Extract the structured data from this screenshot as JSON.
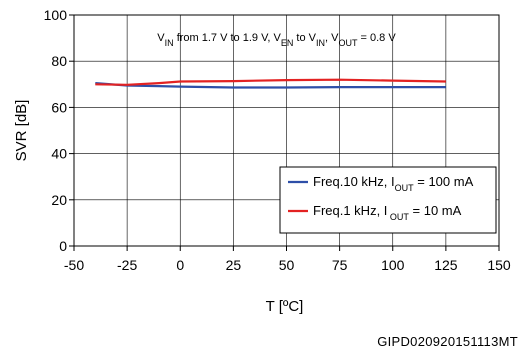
{
  "chart_data": {
    "type": "line",
    "xlabel": "T [ºC]",
    "ylabel": "SVR [dB]",
    "xlim": [
      -50,
      150
    ],
    "ylim": [
      0,
      100
    ],
    "xticks": [
      -50,
      -25,
      0,
      25,
      50,
      75,
      100,
      125,
      150
    ],
    "yticks": [
      0,
      20,
      40,
      60,
      80,
      100
    ],
    "grid": true,
    "legend_position": "bottom-right",
    "annotation": {
      "parts": [
        {
          "t": "V",
          "sub": false
        },
        {
          "t": "IN",
          "sub": true
        },
        {
          "t": " from 1.7 V to 1.9 V, V",
          "sub": false
        },
        {
          "t": "EN",
          "sub": true
        },
        {
          "t": "  to V",
          "sub": false
        },
        {
          "t": "IN",
          "sub": true
        },
        {
          "t": ", V",
          "sub": false
        },
        {
          "t": "OUT",
          "sub": true
        },
        {
          "t": " = 0.8 V",
          "sub": false
        }
      ]
    },
    "series": [
      {
        "name": "Freq.10 kHz, IOUT = 100 mA",
        "legend_parts": [
          {
            "t": "Freq.10 kHz, I",
            "sub": false
          },
          {
            "t": "OUT",
            "sub": true
          },
          {
            "t": " = 100 mA",
            "sub": false
          }
        ],
        "color": "#2e4fa8",
        "x": [
          -40,
          -25,
          -10,
          0,
          25,
          50,
          75,
          100,
          125
        ],
        "y": [
          70.5,
          69.5,
          69.2,
          69.0,
          68.6,
          68.6,
          68.8,
          68.8,
          68.8
        ]
      },
      {
        "name": "Freq.1 kHz, IOUT = 10 mA",
        "legend_parts": [
          {
            "t": "Freq.1 kHz, I",
            "sub": false
          },
          {
            "t": " OUT",
            "sub": true
          },
          {
            "t": " = 10 mA",
            "sub": false
          }
        ],
        "color": "#e32222",
        "x": [
          -40,
          -25,
          -10,
          0,
          25,
          50,
          75,
          100,
          125
        ],
        "y": [
          70.0,
          69.8,
          70.5,
          71.2,
          71.4,
          71.8,
          72.0,
          71.6,
          71.2
        ]
      }
    ]
  },
  "figure_id": "GIPD020920151113MT"
}
